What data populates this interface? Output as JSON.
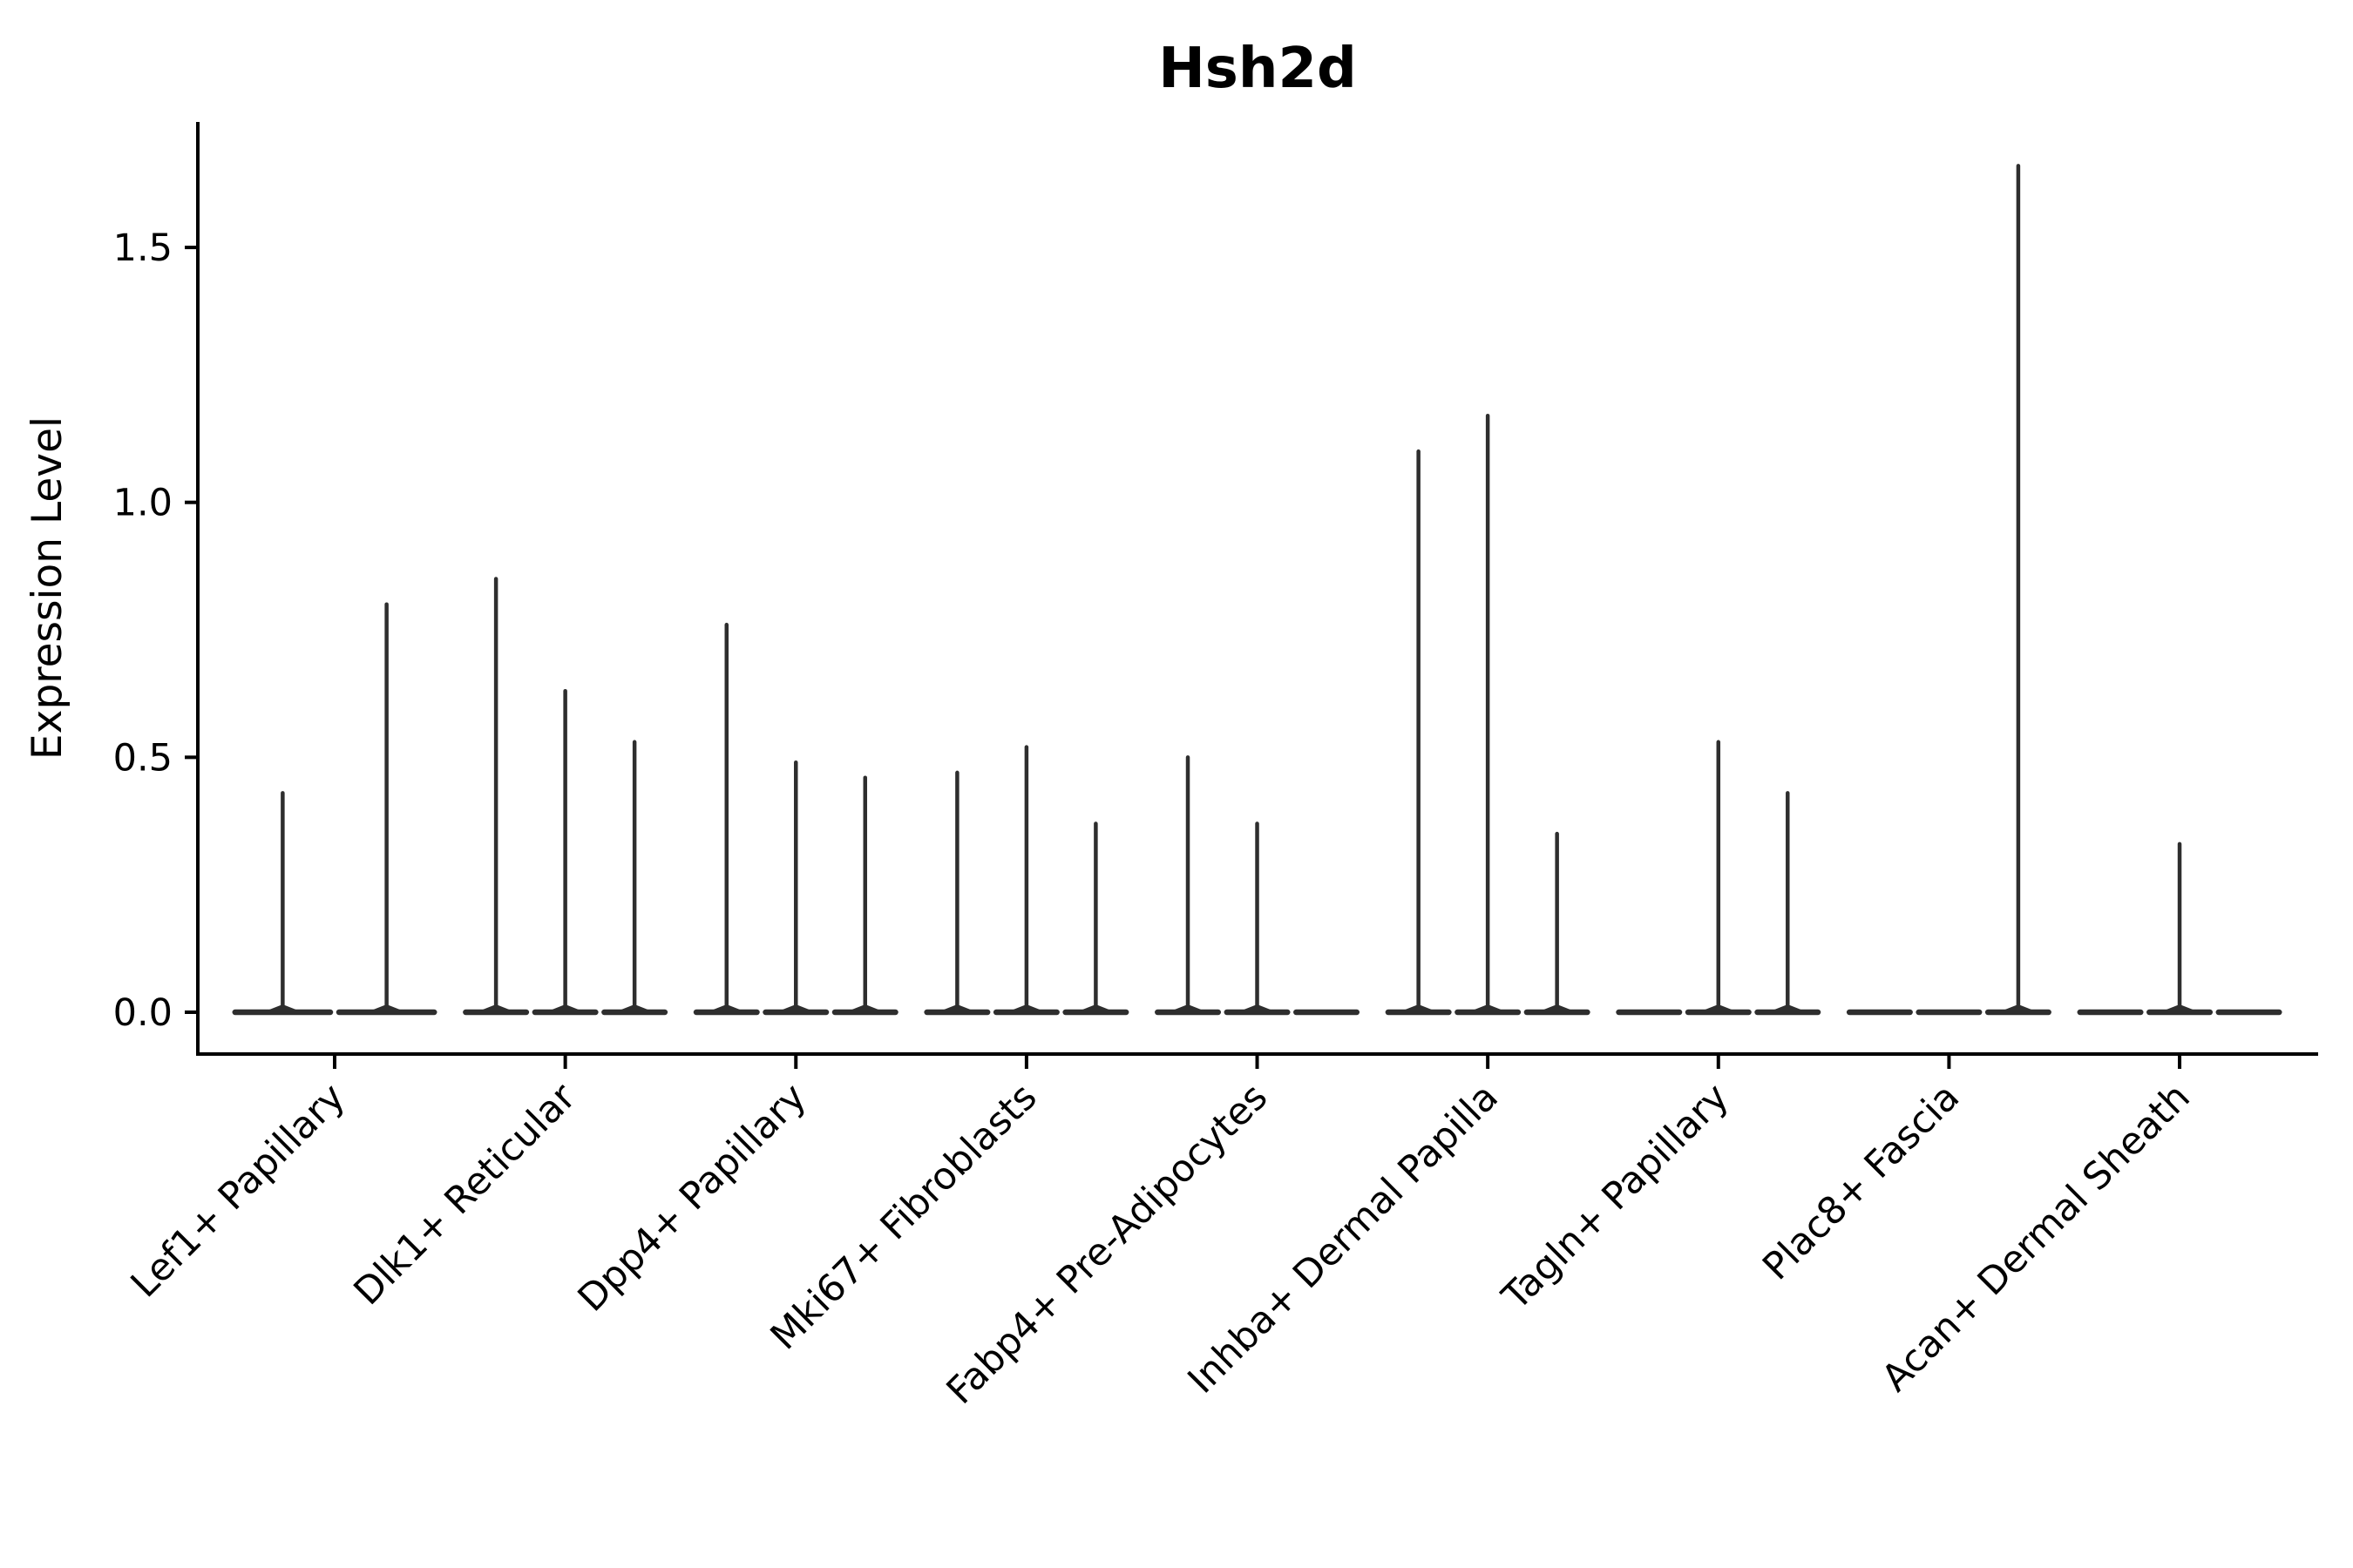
{
  "chart_data": {
    "type": "violin",
    "title": "Hsh2d",
    "ylabel": "Expression Level",
    "xlabel": "",
    "ylim": [
      -0.08,
      1.75
    ],
    "yticks": [
      0.0,
      0.5,
      1.0,
      1.5
    ],
    "ytick_labels": [
      "0.0",
      "0.5",
      "1.0",
      "1.5"
    ],
    "grid": false,
    "legend": "none",
    "violin_color": "#2e2e2e",
    "axis_color": "#000000",
    "categories": [
      "Lef1+ Papillary",
      "Dlk1+ Reticular",
      "Dpp4+ Papillary",
      "Mki67+ Fibroblasts",
      "Fabp4+ Pre-Adipocytes",
      "Inhba+ Dermal Papilla",
      "Tagln+ Papillary",
      "Plac8+ Fascia",
      "Acan+ Dermal Sheath"
    ],
    "note": "Each category holds 2-3 dodged violins; expression mass sits at 0 (flat body) with a thin tail reaching the max value. 0 means an entirely flat violin.",
    "groups": [
      {
        "label": "Lef1+ Papillary",
        "violin_maxes": [
          0.43,
          0.8
        ]
      },
      {
        "label": "Dlk1+ Reticular",
        "violin_maxes": [
          0.85,
          0.63,
          0.53
        ]
      },
      {
        "label": "Dpp4+ Papillary",
        "violin_maxes": [
          0.76,
          0.49,
          0.46
        ]
      },
      {
        "label": "Mki67+ Fibroblasts",
        "violin_maxes": [
          0.47,
          0.52,
          0.37
        ]
      },
      {
        "label": "Fabp4+ Pre-Adipocytes",
        "violin_maxes": [
          0.5,
          0.37,
          0
        ]
      },
      {
        "label": "Inhba+ Dermal Papilla",
        "violin_maxes": [
          1.1,
          1.17,
          0.35
        ]
      },
      {
        "label": "Tagln+ Papillary",
        "violin_maxes": [
          0,
          0.53,
          0.43
        ]
      },
      {
        "label": "Plac8+ Fascia",
        "violin_maxes": [
          0,
          0,
          1.66
        ]
      },
      {
        "label": "Acan+ Dermal Sheath",
        "violin_maxes": [
          0,
          0.33,
          0
        ]
      }
    ]
  }
}
